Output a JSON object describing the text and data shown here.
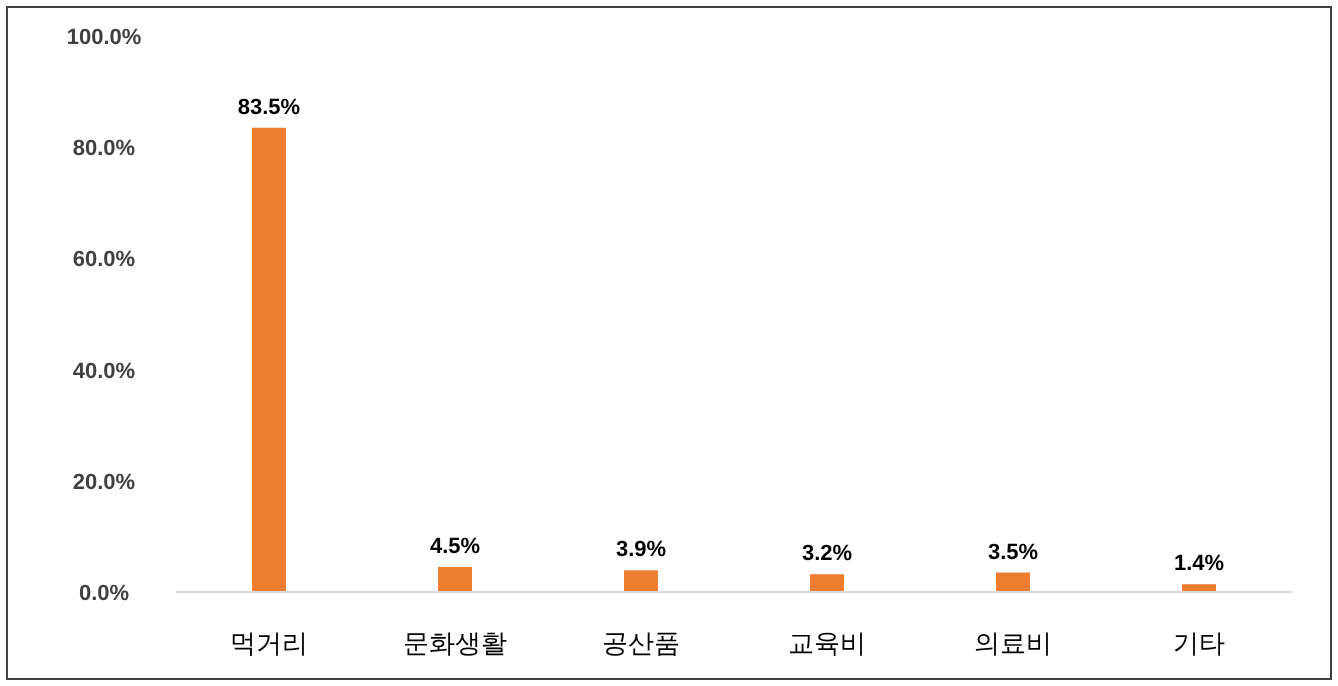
{
  "chart_data": {
    "type": "bar",
    "categories": [
      "먹거리",
      "문화생활",
      "공산품",
      "교육비",
      "의료비",
      "기타"
    ],
    "values": [
      83.5,
      4.5,
      3.9,
      3.2,
      3.5,
      1.4
    ],
    "value_labels": [
      "83.5%",
      "4.5%",
      "3.9%",
      "3.2%",
      "3.5%",
      "1.4%"
    ],
    "color": "#ed7d31",
    "ylim": [
      0,
      100
    ],
    "yticks": [
      {
        "value": 0,
        "label": "0.0%"
      },
      {
        "value": 20,
        "label": "20.0%"
      },
      {
        "value": 40,
        "label": "40.0%"
      },
      {
        "value": 60,
        "label": "60.0%"
      },
      {
        "value": 80,
        "label": "80.0%"
      },
      {
        "value": 100,
        "label": "100.0%"
      }
    ],
    "grid": false
  }
}
